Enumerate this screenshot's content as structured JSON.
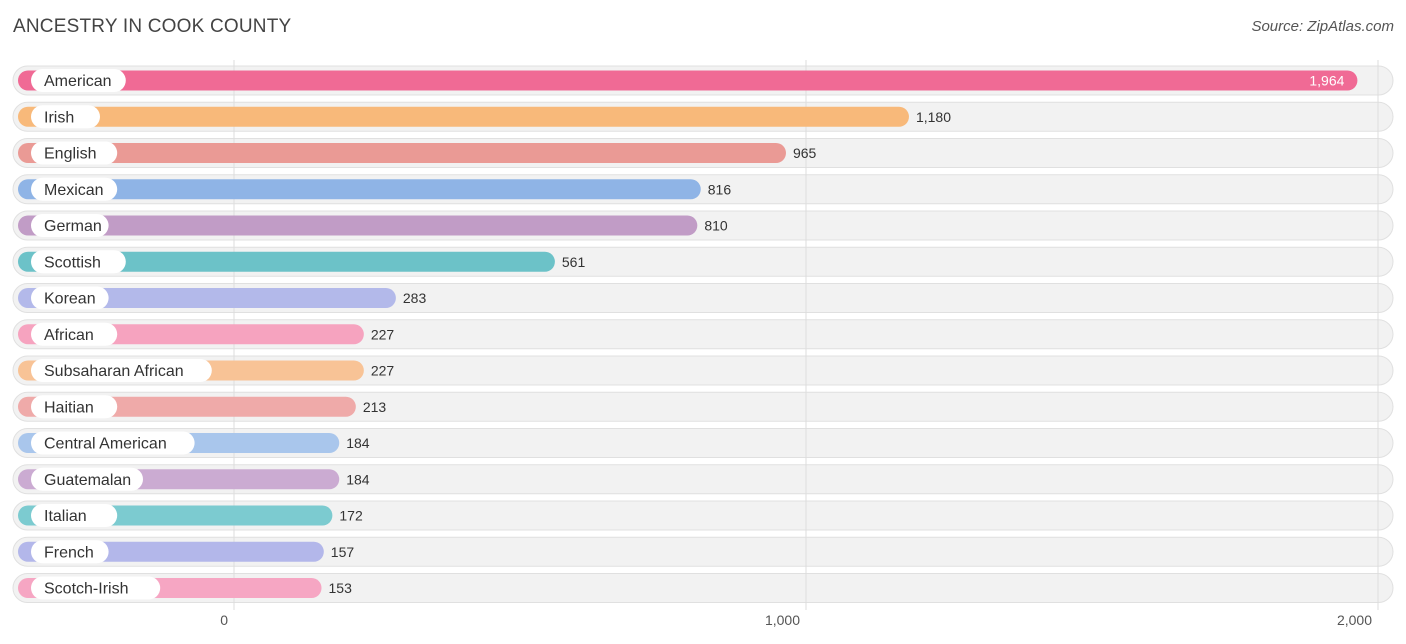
{
  "title": "ANCESTRY IN COOK COUNTY",
  "source": "Source: ZipAtlas.com",
  "chart_data": {
    "type": "bar",
    "orientation": "horizontal",
    "title": "ANCESTRY IN COOK COUNTY",
    "xlim": [
      0,
      2000
    ],
    "grid": true,
    "x_ticks": [
      0,
      1000,
      2000
    ],
    "x_tick_labels": [
      "0",
      "1,000",
      "2,000"
    ],
    "categories": [
      "American",
      "Irish",
      "English",
      "Mexican",
      "German",
      "Scottish",
      "Korean",
      "African",
      "Subsaharan African",
      "Haitian",
      "Central American",
      "Guatemalan",
      "Italian",
      "French",
      "Scotch-Irish"
    ],
    "values": [
      1964,
      1180,
      965,
      816,
      810,
      561,
      283,
      227,
      227,
      213,
      184,
      184,
      172,
      157,
      153
    ],
    "value_labels": [
      "1,964",
      "1,180",
      "965",
      "816",
      "810",
      "561",
      "283",
      "227",
      "227",
      "213",
      "184",
      "184",
      "172",
      "157",
      "153"
    ],
    "colors": [
      "#f06a95",
      "#f8b97a",
      "#ea9a95",
      "#8fb4e6",
      "#c19cc6",
      "#6cc2c8",
      "#b3b9ea",
      "#f6a3bf",
      "#f8c396",
      "#efaaa9",
      "#a9c6ec",
      "#cbabd2",
      "#7ccbd0",
      "#b3b7ea",
      "#f6a6c3"
    ]
  }
}
